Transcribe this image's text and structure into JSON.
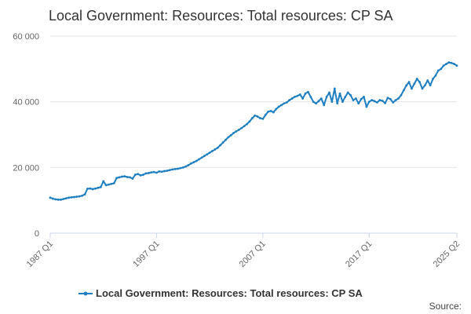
{
  "chart_data": {
    "type": "line",
    "title": "Local Government: Resources: Total resources: CP SA",
    "xlabel": "",
    "ylabel": "",
    "ylim": [
      0,
      60000
    ],
    "yticks": [
      0,
      20000,
      40000,
      60000
    ],
    "ytick_labels": [
      "0",
      "20 000",
      "40 000",
      "60 000"
    ],
    "xtick_labels": [
      "1987 Q1",
      "1997 Q1",
      "2007 Q1",
      "2017 Q1",
      "2025 Q2"
    ],
    "xtick_index": [
      0,
      40,
      80,
      120,
      153
    ],
    "grid": true,
    "legend": "bottom",
    "series": [
      {
        "name": "Local Government: Resources: Total resources: CP SA",
        "color": "#1f7fc1",
        "x_start": "1987 Q1",
        "x_end": "2025 Q2",
        "values": [
          10800,
          10500,
          10300,
          10200,
          10200,
          10400,
          10600,
          10800,
          10900,
          11000,
          11100,
          11200,
          11400,
          11800,
          13500,
          13600,
          13400,
          13600,
          13800,
          14000,
          15800,
          14600,
          14800,
          15000,
          15200,
          16800,
          17000,
          17200,
          17300,
          17100,
          17000,
          16600,
          17800,
          18000,
          17600,
          17800,
          18200,
          18300,
          18500,
          18600,
          18400,
          18800,
          18700,
          18900,
          19000,
          19200,
          19400,
          19500,
          19600,
          19800,
          20000,
          20300,
          20700,
          21200,
          21600,
          22000,
          22500,
          23000,
          23500,
          24000,
          24500,
          25000,
          25500,
          26000,
          26800,
          27600,
          28400,
          29200,
          29800,
          30500,
          31000,
          31500,
          32000,
          32600,
          33200,
          34000,
          35000,
          35800,
          35500,
          35000,
          34800,
          36000,
          37000,
          37200,
          36800,
          37800,
          38500,
          39000,
          39500,
          39800,
          40500,
          41000,
          41500,
          41800,
          42200,
          41000,
          42500,
          43000,
          41500,
          40000,
          39500,
          40200,
          41000,
          39000,
          41500,
          42800,
          40000,
          44000,
          39500,
          42500,
          40000,
          41500,
          42800,
          42000,
          40500,
          41000,
          39500,
          40800,
          41500,
          38500,
          40000,
          40500,
          40200,
          39800,
          40500,
          40300,
          39600,
          41200,
          40800,
          39800,
          40500,
          41000,
          42000,
          43500,
          45000,
          46000,
          44000,
          45500,
          47000,
          46000,
          44000,
          45000,
          46500,
          45000,
          47000,
          48000,
          49500,
          50000,
          51000,
          51500,
          52000,
          51800,
          51500,
          51000
        ]
      }
    ]
  },
  "source_label": "Source:"
}
